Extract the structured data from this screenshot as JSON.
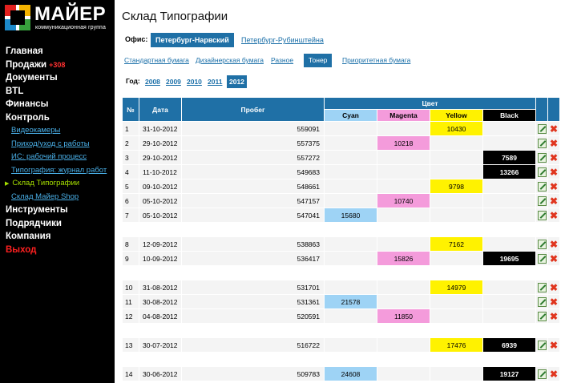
{
  "logo": {
    "name": "МАЙЕР",
    "subtitle": "коммуникационная группа"
  },
  "nav": {
    "main": "Главная",
    "sales": "Продажи",
    "sales_badge": "+308",
    "documents": "Документы",
    "btl": "BTL",
    "finance": "Финансы",
    "control": "Контроль",
    "control_items": [
      "Видеокамеры",
      "Приход/уход с работы",
      "ИС: рабочий процесс",
      "Типография: журнал работ",
      "Склад Типографии",
      "Склад Майер Shop"
    ],
    "tools": "Инструменты",
    "contractors": "Подрядчики",
    "company": "Компания",
    "exit": "Выход"
  },
  "page_title": "Склад Типографии",
  "office": {
    "label": "Офис:",
    "options": [
      "Петербург-Нарвский",
      "Петербург-Рубинштейна"
    ],
    "selected": "Петербург-Нарвский"
  },
  "tabs": [
    "Стандартная бумага",
    "Дизайнерская бумага",
    "Разное",
    "Тонер",
    "Приоритетная бумага"
  ],
  "active_tab": "Тонер",
  "years": {
    "label": "Год:",
    "items": [
      "2008",
      "2009",
      "2010",
      "2011",
      "2012"
    ],
    "selected": "2012"
  },
  "table": {
    "headers": {
      "num": "№",
      "date": "Дата",
      "mileage": "Пробег",
      "color": "Цвет"
    },
    "colors": [
      "Cyan",
      "Magenta",
      "Yellow",
      "Black"
    ],
    "rows": [
      {
        "n": "1",
        "date": "31-10-2012",
        "mileage": "559091",
        "cyan": "",
        "magenta": "",
        "yellow": "10430",
        "black": ""
      },
      {
        "n": "2",
        "date": "29-10-2012",
        "mileage": "557375",
        "cyan": "",
        "magenta": "10218",
        "yellow": "",
        "black": ""
      },
      {
        "n": "3",
        "date": "29-10-2012",
        "mileage": "557272",
        "cyan": "",
        "magenta": "",
        "yellow": "",
        "black": "7589"
      },
      {
        "n": "4",
        "date": "11-10-2012",
        "mileage": "549683",
        "cyan": "",
        "magenta": "",
        "yellow": "",
        "black": "13266"
      },
      {
        "n": "5",
        "date": "09-10-2012",
        "mileage": "548661",
        "cyan": "",
        "magenta": "",
        "yellow": "9798",
        "black": ""
      },
      {
        "n": "6",
        "date": "05-10-2012",
        "mileage": "547157",
        "cyan": "",
        "magenta": "10740",
        "yellow": "",
        "black": ""
      },
      {
        "n": "7",
        "date": "05-10-2012",
        "mileage": "547041",
        "cyan": "15680",
        "magenta": "",
        "yellow": "",
        "black": ""
      },
      {
        "spacer": true
      },
      {
        "n": "8",
        "date": "12-09-2012",
        "mileage": "538863",
        "cyan": "",
        "magenta": "",
        "yellow": "7162",
        "black": ""
      },
      {
        "n": "9",
        "date": "10-09-2012",
        "mileage": "536417",
        "cyan": "",
        "magenta": "15826",
        "yellow": "",
        "black": "19695"
      },
      {
        "spacer": true
      },
      {
        "n": "10",
        "date": "31-08-2012",
        "mileage": "531701",
        "cyan": "",
        "magenta": "",
        "yellow": "14979",
        "black": ""
      },
      {
        "n": "11",
        "date": "30-08-2012",
        "mileage": "531361",
        "cyan": "21578",
        "magenta": "",
        "yellow": "",
        "black": ""
      },
      {
        "n": "12",
        "date": "04-08-2012",
        "mileage": "520591",
        "cyan": "",
        "magenta": "11850",
        "yellow": "",
        "black": ""
      },
      {
        "spacer": true
      },
      {
        "n": "13",
        "date": "30-07-2012",
        "mileage": "516722",
        "cyan": "",
        "magenta": "",
        "yellow": "17476",
        "black": "6939"
      },
      {
        "spacer": true
      },
      {
        "n": "14",
        "date": "30-06-2012",
        "mileage": "509783",
        "cyan": "24608",
        "magenta": "",
        "yellow": "",
        "black": "19127"
      }
    ]
  },
  "icons": {
    "edit": "edit-icon",
    "delete": "delete-icon"
  },
  "colors_hex": {
    "accent": "#1f70a6",
    "cyan": "#9ed3f5",
    "magenta": "#f49bdb",
    "yellow": "#fff200",
    "black": "#000000",
    "exit": "#ff2020",
    "active_nav": "#a6e000"
  }
}
